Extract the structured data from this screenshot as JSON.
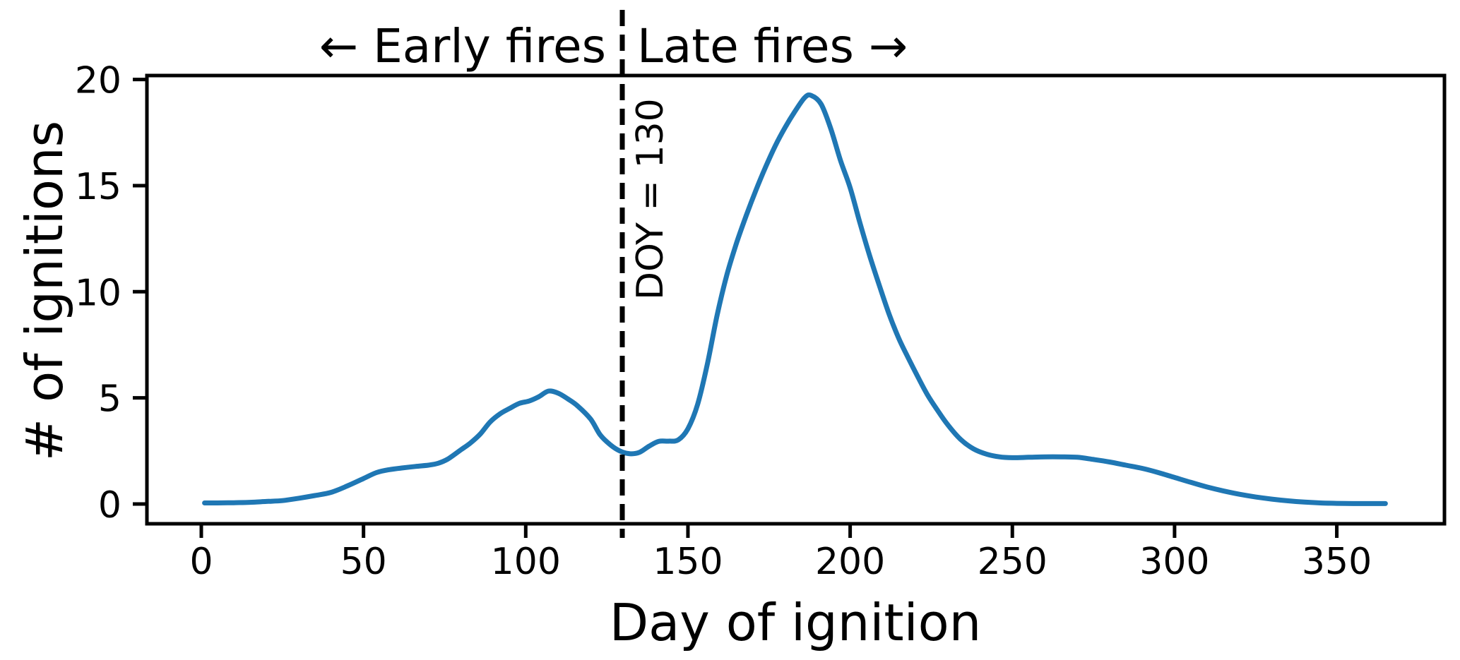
{
  "figure": {
    "background": "#ffffff"
  },
  "annotations": {
    "early_label": "← Early fires",
    "late_label": "Late fires →",
    "doy_label": "DOY = 130",
    "threshold_day": 130
  },
  "axes": {
    "x_label": "Day of ignition",
    "y_label": "# of ignitions",
    "x_ticks": [
      0,
      50,
      100,
      150,
      200,
      250,
      300,
      350
    ],
    "y_ticks": [
      0,
      5,
      10,
      15,
      20
    ]
  },
  "colors": {
    "curve": "#1f77b4",
    "axis": "#000000",
    "dashed_line": "#000000",
    "text": "#000000"
  },
  "chart_data": {
    "type": "line",
    "title": "",
    "xlabel": "Day of ignition",
    "ylabel": "# of ignitions",
    "xlim": [
      -17,
      383
    ],
    "ylim": [
      -0.95,
      20.3
    ],
    "grid": false,
    "legend": "none",
    "annotations": [
      {
        "kind": "vline",
        "x": 130,
        "style": "dashed",
        "color": "#000000",
        "label": "DOY = 130"
      },
      {
        "kind": "text",
        "text": "← Early fires",
        "position": "top-left-of-vline"
      },
      {
        "kind": "text",
        "text": "Late fires →",
        "position": "top-right-of-vline"
      }
    ],
    "x": [
      1,
      5,
      10,
      15,
      20,
      25,
      30,
      35,
      40,
      45,
      50,
      54,
      58,
      62,
      66,
      70,
      73,
      76,
      80,
      83,
      86,
      89,
      92,
      95,
      98,
      101,
      104,
      107,
      110,
      113,
      116,
      120,
      123,
      126,
      129,
      132,
      135,
      138,
      141,
      144,
      147,
      150,
      153,
      156,
      159,
      162,
      165,
      168,
      171,
      174,
      177,
      180,
      183,
      186,
      188,
      191,
      194,
      197,
      200,
      203,
      206,
      209,
      212,
      215,
      218,
      221,
      224,
      227,
      230,
      234,
      238,
      242,
      246,
      250,
      255,
      260,
      265,
      270,
      275,
      280,
      285,
      290,
      295,
      300,
      305,
      310,
      315,
      320,
      325,
      330,
      335,
      340,
      345,
      350,
      355,
      360,
      365
    ],
    "series": [
      {
        "name": "# of ignitions",
        "values": [
          0.05,
          0.05,
          0.06,
          0.08,
          0.12,
          0.16,
          0.27,
          0.4,
          0.55,
          0.85,
          1.2,
          1.48,
          1.62,
          1.7,
          1.77,
          1.83,
          1.92,
          2.12,
          2.55,
          2.88,
          3.3,
          3.86,
          4.24,
          4.5,
          4.74,
          4.85,
          5.05,
          5.32,
          5.22,
          4.95,
          4.62,
          4.0,
          3.25,
          2.8,
          2.5,
          2.37,
          2.43,
          2.72,
          2.95,
          2.96,
          3.02,
          3.55,
          4.7,
          6.6,
          8.9,
          10.8,
          12.3,
          13.6,
          14.8,
          15.9,
          16.9,
          17.75,
          18.5,
          19.15,
          19.25,
          18.85,
          17.7,
          16.2,
          14.9,
          13.25,
          11.7,
          10.3,
          8.95,
          7.8,
          6.85,
          5.95,
          5.1,
          4.4,
          3.75,
          3.05,
          2.6,
          2.35,
          2.22,
          2.18,
          2.2,
          2.22,
          2.22,
          2.2,
          2.1,
          1.98,
          1.83,
          1.68,
          1.48,
          1.25,
          1.02,
          0.8,
          0.62,
          0.46,
          0.33,
          0.23,
          0.15,
          0.09,
          0.05,
          0.03,
          0.02,
          0.02,
          0.02
        ]
      }
    ]
  }
}
